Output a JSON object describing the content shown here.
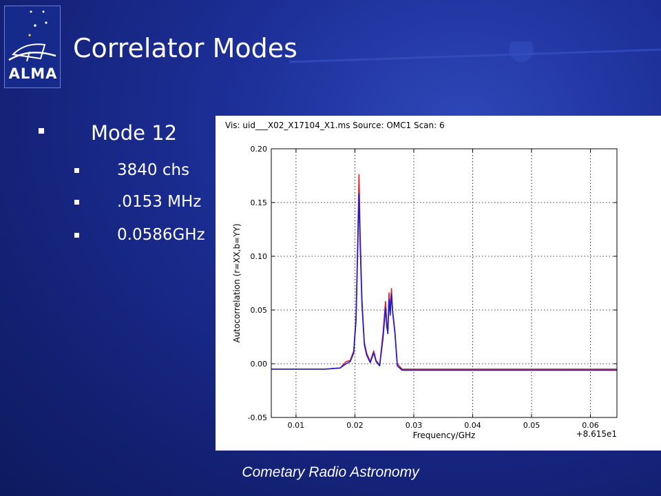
{
  "slide": {
    "title": "Correlator Modes",
    "bullet_main": "Mode 12",
    "sub_bullets": [
      "3840 chs",
      ".0153 MHz",
      "0.0586GHz"
    ],
    "footer": "Cometary Radio Astronomy",
    "logo_text": "ALMA"
  },
  "colors": {
    "background": "#1d2f98",
    "series_r": "#e0242c",
    "series_b": "#1a1ad6"
  },
  "chart_data": {
    "type": "line",
    "title": "Vis: uid___X02_X17104_X1.ms Source: OMC1 Scan: 6",
    "xlabel": "Frequency/GHz",
    "ylabel": "Autocorrelation (r=XX,b=YY)",
    "x_offset_label": "+8.615e1",
    "xlim": [
      0.0058,
      0.0645
    ],
    "ylim": [
      -0.05,
      0.2
    ],
    "xticks": [
      0.01,
      0.02,
      0.03,
      0.04,
      0.05,
      0.06
    ],
    "xtick_labels": [
      "0.01",
      "0.02",
      "0.03",
      "0.04",
      "0.05",
      "0.06"
    ],
    "yticks": [
      -0.05,
      0.0,
      0.05,
      0.1,
      0.15,
      0.2
    ],
    "ytick_labels": [
      "-0.05",
      "0.00",
      "0.05",
      "0.10",
      "0.15",
      "0.20"
    ],
    "grid": true,
    "series": [
      {
        "color": "#e0242c",
        "x": [
          0.0058,
          0.01,
          0.015,
          0.0175,
          0.0185,
          0.0192,
          0.0198,
          0.0202,
          0.0205,
          0.0207,
          0.0209,
          0.0212,
          0.0216,
          0.022,
          0.0226,
          0.0232,
          0.0236,
          0.0242,
          0.0248,
          0.0252,
          0.0254,
          0.0256,
          0.0258,
          0.026,
          0.0262,
          0.0264,
          0.0268,
          0.0272,
          0.028,
          0.035,
          0.045,
          0.055,
          0.0645
        ],
        "y": [
          -0.005,
          -0.005,
          -0.005,
          -0.004,
          0.002,
          0.003,
          0.012,
          0.045,
          0.12,
          0.176,
          0.12,
          0.06,
          0.02,
          0.01,
          0.002,
          0.012,
          0.003,
          -0.001,
          0.03,
          0.058,
          0.04,
          0.03,
          0.066,
          0.05,
          0.07,
          0.05,
          0.03,
          0.0,
          -0.005,
          -0.005,
          -0.005,
          -0.005,
          -0.005
        ]
      },
      {
        "color": "#1a1ad6",
        "x": [
          0.0058,
          0.01,
          0.015,
          0.0175,
          0.0185,
          0.0192,
          0.0198,
          0.0202,
          0.0205,
          0.0207,
          0.0209,
          0.0212,
          0.0216,
          0.022,
          0.0226,
          0.0232,
          0.0236,
          0.0242,
          0.0248,
          0.0252,
          0.0254,
          0.0256,
          0.0258,
          0.026,
          0.0262,
          0.0264,
          0.0268,
          0.0272,
          0.028,
          0.035,
          0.045,
          0.055,
          0.0645
        ],
        "y": [
          -0.005,
          -0.005,
          -0.005,
          -0.004,
          0.0,
          0.002,
          0.01,
          0.04,
          0.11,
          0.158,
          0.11,
          0.055,
          0.018,
          0.008,
          0.001,
          0.01,
          0.002,
          -0.002,
          0.025,
          0.052,
          0.035,
          0.028,
          0.06,
          0.045,
          0.065,
          0.048,
          0.028,
          -0.002,
          -0.006,
          -0.006,
          -0.006,
          -0.006,
          -0.006
        ]
      }
    ]
  }
}
